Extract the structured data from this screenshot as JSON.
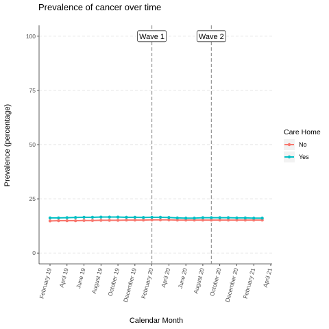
{
  "chart_data": {
    "type": "line",
    "title": "Prevalence of cancer over time",
    "xlabel": "Calendar Month",
    "ylabel": "Prevalence (percentage)",
    "ylim": [
      -5,
      105
    ],
    "yticks": [
      0,
      25,
      50,
      75,
      100
    ],
    "x": [
      "2019-02",
      "2019-03",
      "2019-04",
      "2019-05",
      "2019-06",
      "2019-07",
      "2019-08",
      "2019-09",
      "2019-10",
      "2019-11",
      "2019-12",
      "2020-01",
      "2020-02",
      "2020-03",
      "2020-04",
      "2020-05",
      "2020-06",
      "2020-07",
      "2020-08",
      "2020-09",
      "2020-10",
      "2020-11",
      "2020-12",
      "2021-01",
      "2021-02",
      "2021-03"
    ],
    "xticks": [
      {
        "date": "2019-02",
        "label": "February 19"
      },
      {
        "date": "2019-04",
        "label": "April 19"
      },
      {
        "date": "2019-06",
        "label": "June 19"
      },
      {
        "date": "2019-08",
        "label": "August 19"
      },
      {
        "date": "2019-10",
        "label": "October 19"
      },
      {
        "date": "2019-12",
        "label": "December 19"
      },
      {
        "date": "2020-02",
        "label": "February 20"
      },
      {
        "date": "2020-04",
        "label": "April 20"
      },
      {
        "date": "2020-06",
        "label": "June 20"
      },
      {
        "date": "2020-08",
        "label": "August 20"
      },
      {
        "date": "2020-10",
        "label": "October 20"
      },
      {
        "date": "2020-12",
        "label": "December 20"
      },
      {
        "date": "2021-02",
        "label": "February 21"
      },
      {
        "date": "2021-04",
        "label": "April 21"
      }
    ],
    "series": [
      {
        "name": "No",
        "color": "#F8766D",
        "values": [
          14.8,
          14.9,
          14.9,
          14.9,
          15.0,
          15.0,
          15.1,
          15.1,
          15.1,
          15.2,
          15.2,
          15.2,
          15.3,
          15.3,
          15.3,
          15.2,
          15.2,
          15.2,
          15.2,
          15.2,
          15.2,
          15.2,
          15.2,
          15.2,
          15.2,
          15.2
        ]
      },
      {
        "name": "Yes",
        "color": "#00BFC4",
        "values": [
          16.2,
          16.2,
          16.3,
          16.4,
          16.5,
          16.5,
          16.6,
          16.6,
          16.6,
          16.5,
          16.5,
          16.4,
          16.5,
          16.5,
          16.4,
          16.2,
          16.1,
          16.1,
          16.3,
          16.3,
          16.3,
          16.3,
          16.2,
          16.2,
          16.1,
          16.1
        ]
      }
    ],
    "annotations": [
      {
        "label": "Wave 1",
        "date": "2020-02"
      },
      {
        "label": "Wave 2",
        "date": "2020-09"
      }
    ],
    "legend": {
      "title": "Care Home",
      "placement": "right"
    },
    "grid": true
  }
}
